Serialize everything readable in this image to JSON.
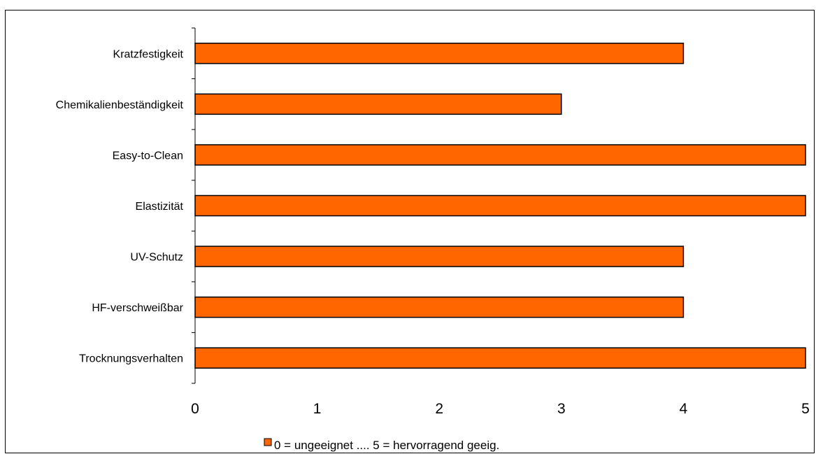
{
  "chart_data": {
    "type": "bar",
    "orientation": "horizontal",
    "categories": [
      "Kratzfestigkeit",
      "Chemikalienbeständigkeit",
      "Easy-to-Clean",
      "Elastizität",
      "UV-Schutz",
      "HF-verschweißbar",
      "Trocknungsverhalten"
    ],
    "series": [
      {
        "name": "0 = ungeeignet .... 5 = hervorragend geeig.",
        "values": [
          4,
          3,
          5,
          5,
          4,
          4,
          5
        ],
        "color": "#ff6600"
      }
    ],
    "xlim": [
      0,
      5
    ],
    "xticks": [
      "0",
      "1",
      "2",
      "3",
      "4",
      "5"
    ],
    "grid": false,
    "legend": "bottom-center",
    "title": "",
    "xlabel": "",
    "ylabel": ""
  }
}
